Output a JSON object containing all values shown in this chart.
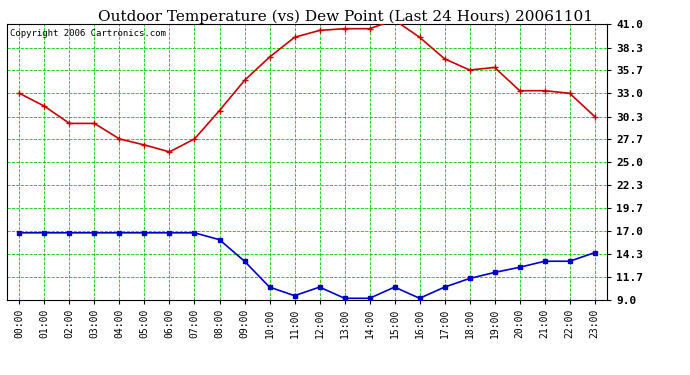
{
  "title": "Outdoor Temperature (vs) Dew Point (Last 24 Hours) 20061101",
  "copyright": "Copyright 2006 Cartronics.com",
  "hours": [
    "00:00",
    "01:00",
    "02:00",
    "03:00",
    "04:00",
    "05:00",
    "06:00",
    "07:00",
    "08:00",
    "09:00",
    "10:00",
    "11:00",
    "12:00",
    "13:00",
    "14:00",
    "15:00",
    "16:00",
    "17:00",
    "18:00",
    "19:00",
    "20:00",
    "21:00",
    "22:00",
    "23:00"
  ],
  "temp": [
    33.0,
    31.5,
    29.5,
    29.5,
    27.7,
    27.0,
    26.2,
    27.7,
    31.0,
    34.5,
    37.2,
    39.5,
    40.3,
    40.5,
    40.5,
    41.5,
    39.5,
    37.0,
    35.7,
    36.0,
    33.3,
    33.3,
    33.0,
    30.3
  ],
  "dew": [
    16.8,
    16.8,
    16.8,
    16.8,
    16.8,
    16.8,
    16.8,
    16.8,
    16.0,
    13.5,
    10.5,
    9.5,
    10.5,
    9.2,
    9.2,
    10.5,
    9.2,
    10.5,
    11.5,
    12.2,
    12.8,
    13.5,
    13.5,
    14.5
  ],
  "temp_color": "#cc0000",
  "dew_color": "#0000cc",
  "bg_color": "#ffffff",
  "plot_bg_color": "#ffffff",
  "grid_color": "#00cc00",
  "ylim_min": 9.0,
  "ylim_max": 41.0,
  "yticks": [
    9.0,
    11.7,
    14.3,
    17.0,
    19.7,
    22.3,
    25.0,
    27.7,
    30.3,
    33.0,
    35.7,
    38.3,
    41.0
  ],
  "title_fontsize": 11,
  "copyright_fontsize": 6.5,
  "tick_fontsize": 7,
  "ylabel_fontsize": 8
}
